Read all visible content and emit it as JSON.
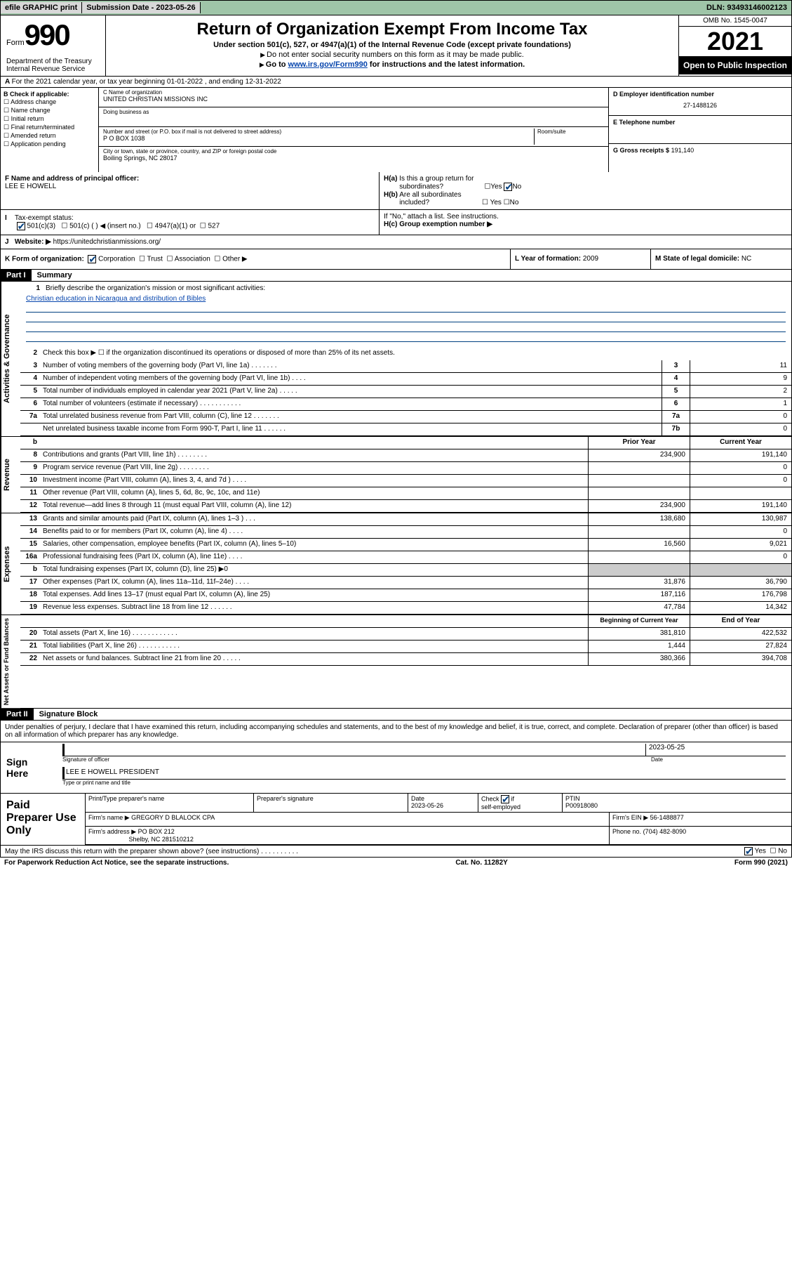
{
  "top": {
    "efile": "efile GRAPHIC print",
    "submit_label": "Submission Date -",
    "submit_date": "2023-05-26",
    "dln_label": "DLN:",
    "dln": "93493146002123"
  },
  "header": {
    "form_label": "Form",
    "form_num": "990",
    "dept": "Department of the Treasury\nInternal Revenue Service",
    "title": "Return of Organization Exempt From Income Tax",
    "subtitle": "Under section 501(c), 527, or 4947(a)(1) of the Internal Revenue Code (except private foundations)",
    "sub2": "Do not enter social security numbers on this form as it may be made public.",
    "sub3_pre": "Go to ",
    "sub3_link": "www.irs.gov/Form990",
    "sub3_post": " for instructions and the latest information.",
    "omb": "OMB No. 1545-0047",
    "year": "2021",
    "inspect": "Open to Public Inspection"
  },
  "section_a": "For the 2021 calendar year, or tax year beginning 01-01-2022   , and ending 12-31-2022",
  "col_b": {
    "header": "B Check if applicable:",
    "opts": [
      "Address change",
      "Name change",
      "Initial return",
      "Final return/terminated",
      "Amended return",
      "Application pending"
    ]
  },
  "col_c": {
    "name_lbl": "C Name of organization",
    "name": "UNITED CHRISTIAN MISSIONS INC",
    "dba_lbl": "Doing business as",
    "street_lbl": "Number and street (or P.O. box if mail is not delivered to street address)",
    "room_lbl": "Room/suite",
    "street": "P O BOX 1038",
    "city_lbl": "City or town, state or province, country, and ZIP or foreign postal code",
    "city": "Boiling Springs, NC  28017"
  },
  "col_d": {
    "ein_lbl": "D Employer identification number",
    "ein": "27-1488126",
    "tel_lbl": "E Telephone number",
    "gross_lbl": "G Gross receipts $",
    "gross": "191,140"
  },
  "row_f": {
    "f_lbl": "F  Name and address of principal officer:",
    "f_name": "LEE E HOWELL",
    "ha": "H(a)  Is this a group return for subordinates?",
    "hb": "H(b)  Are all subordinates included?",
    "hb_note": "If \"No,\" attach a list. See instructions.",
    "hc": "H(c)  Group exemption number ▶"
  },
  "row_tax": {
    "i_lbl": "Tax-exempt status:",
    "opts": [
      "501(c)(3)",
      "501(c) (  ) ◀ (insert no.)",
      "4947(a)(1) or",
      "527"
    ],
    "j_lbl": "Website: ▶",
    "j_val": "https://unitedchristianmissions.org/"
  },
  "row_k": {
    "k_lbl": "K Form of organization:",
    "k_opts": [
      "Corporation",
      "Trust",
      "Association",
      "Other ▶"
    ],
    "l_lbl": "L Year of formation:",
    "l_val": "2009",
    "m_lbl": "M State of legal domicile:",
    "m_val": "NC"
  },
  "part1": {
    "label": "Part I",
    "title": "Summary",
    "q1": "Briefly describe the organization's mission or most significant activities:",
    "q1_ans": "Christian education in Nicaragua and distribution of Bibles",
    "q2": "Check this box ▶ ☐  if the organization discontinued its operations or disposed of more than 25% of its net assets.",
    "sections": {
      "governance": "Activities & Governance",
      "revenue": "Revenue",
      "expenses": "Expenses",
      "assets": "Net Assets or Fund Balances"
    },
    "lines_gov": [
      {
        "n": "3",
        "t": "Number of voting members of the governing body (Part VI, line 1a)   .     .     .     .     .     .     .",
        "box": "3",
        "v": "11"
      },
      {
        "n": "4",
        "t": "Number of independent voting members of the governing body (Part VI, line 1b)    .     .     .     .",
        "box": "4",
        "v": "9"
      },
      {
        "n": "5",
        "t": "Total number of individuals employed in calendar year 2021 (Part V, line 2a)    .     .     .     .     .",
        "box": "5",
        "v": "2"
      },
      {
        "n": "6",
        "t": "Total number of volunteers (estimate if necessary)   .     .     .     .     .     .     .     .     .     .     .",
        "box": "6",
        "v": "1"
      },
      {
        "n": "7a",
        "t": "Total unrelated business revenue from Part VIII, column (C), line 12   .     .     .     .     .     .     .",
        "box": "7a",
        "v": "0"
      },
      {
        "n": "",
        "t": "Net unrelated business taxable income from Form 990-T, Part I, line 11   .     .     .     .     .     .",
        "box": "7b",
        "v": "0"
      }
    ],
    "hdr_prior": "Prior Year",
    "hdr_current": "Current Year",
    "lines_rev": [
      {
        "n": "8",
        "t": "Contributions and grants (Part VIII, line 1h)    .     .     .     .     .     .     .     .",
        "p": "234,900",
        "c": "191,140"
      },
      {
        "n": "9",
        "t": "Program service revenue (Part VIII, line 2g)    .     .     .     .     .     .     .     .",
        "p": "",
        "c": "0"
      },
      {
        "n": "10",
        "t": "Investment income (Part VIII, column (A), lines 3, 4, and 7d )    .     .     .     .",
        "p": "",
        "c": "0"
      },
      {
        "n": "11",
        "t": "Other revenue (Part VIII, column (A), lines 5, 6d, 8c, 9c, 10c, and 11e)",
        "p": "",
        "c": ""
      },
      {
        "n": "12",
        "t": "Total revenue—add lines 8 through 11 (must equal Part VIII, column (A), line 12)",
        "p": "234,900",
        "c": "191,140"
      }
    ],
    "lines_exp": [
      {
        "n": "13",
        "t": "Grants and similar amounts paid (Part IX, column (A), lines 1–3 )    .     .     .",
        "p": "138,680",
        "c": "130,987"
      },
      {
        "n": "14",
        "t": "Benefits paid to or for members (Part IX, column (A), line 4)    .     .     .     .",
        "p": "",
        "c": "0"
      },
      {
        "n": "15",
        "t": "Salaries, other compensation, employee benefits (Part IX, column (A), lines 5–10)",
        "p": "16,560",
        "c": "9,021"
      },
      {
        "n": "16a",
        "t": "Professional fundraising fees (Part IX, column (A), line 11e)    .     .     .     .",
        "p": "",
        "c": "0"
      },
      {
        "n": "b",
        "t": "Total fundraising expenses (Part IX, column (D), line 25) ▶0",
        "p": "SHADE",
        "c": "SHADE"
      },
      {
        "n": "17",
        "t": "Other expenses (Part IX, column (A), lines 11a–11d, 11f–24e)   .     .     .     .",
        "p": "31,876",
        "c": "36,790"
      },
      {
        "n": "18",
        "t": "Total expenses. Add lines 13–17 (must equal Part IX, column (A), line 25)",
        "p": "187,116",
        "c": "176,798"
      },
      {
        "n": "19",
        "t": "Revenue less expenses. Subtract line 18 from line 12   .     .     .     .     .     .",
        "p": "47,784",
        "c": "14,342"
      }
    ],
    "hdr_beg": "Beginning of Current Year",
    "hdr_end": "End of Year",
    "lines_net": [
      {
        "n": "20",
        "t": "Total assets (Part X, line 16)   .     .     .     .     .     .     .     .     .     .     .     .",
        "p": "381,810",
        "c": "422,532"
      },
      {
        "n": "21",
        "t": "Total liabilities (Part X, line 26)   .     .     .     .     .     .     .     .     .     .     .",
        "p": "1,444",
        "c": "27,824"
      },
      {
        "n": "22",
        "t": "Net assets or fund balances. Subtract line 21 from line 20   .     .     .     .     .",
        "p": "380,366",
        "c": "394,708"
      }
    ]
  },
  "part2": {
    "label": "Part II",
    "title": "Signature Block",
    "intro": "Under penalties of perjury, I declare that I have examined this return, including accompanying schedules and statements, and to the best of my knowledge and belief, it is true, correct, and complete. Declaration of preparer (other than officer) is based on all information of which preparer has any knowledge.",
    "sign_here": "Sign Here",
    "sig_officer": "Signature of officer",
    "sig_date": "2023-05-25",
    "sig_date_lbl": "Date",
    "sig_name": "LEE E HOWELL  PRESIDENT",
    "sig_name_lbl": "Type or print name and title",
    "paid": "Paid Preparer Use Only",
    "prep_hdrs": [
      "Print/Type preparer's name",
      "Preparer's signature",
      "Date",
      "Check ☑ if self-employed",
      "PTIN"
    ],
    "prep_date": "2023-05-26",
    "ptin": "P00918080",
    "firm_name_lbl": "Firm's name      ▶",
    "firm_name": "GREGORY D BLALOCK CPA",
    "firm_ein_lbl": "Firm's EIN ▶",
    "firm_ein": "56-1488877",
    "firm_addr_lbl": "Firm's address ▶",
    "firm_addr": "PO BOX 212",
    "firm_addr2": "Shelby, NC  281510212",
    "phone_lbl": "Phone no.",
    "phone": "(704) 482-8090",
    "discuss": "May the IRS discuss this return with the preparer shown above? (see instructions)    .     .     .     .     .     .     .     .     .     .",
    "yes": "Yes",
    "no": "No"
  },
  "footer": {
    "pra": "For Paperwork Reduction Act Notice, see the separate instructions.",
    "cat": "Cat. No. 11282Y",
    "form": "Form 990 (2021)"
  },
  "colors": {
    "topbar": "#9fc5a8",
    "link": "#0645ad",
    "check": "#004080"
  }
}
